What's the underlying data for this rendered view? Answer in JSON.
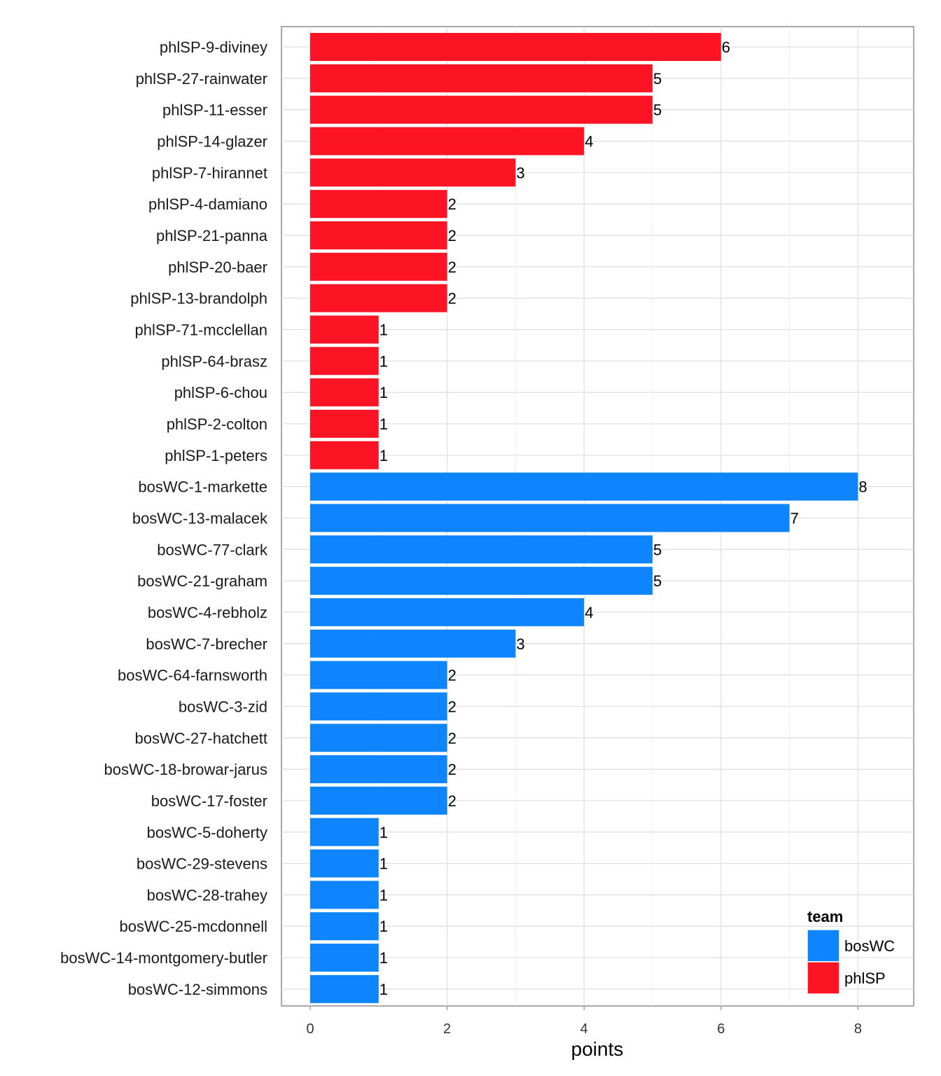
{
  "chart_data": {
    "type": "bar",
    "orientation": "horizontal",
    "xlabel": "points",
    "ylabel": "",
    "xlim": [
      0,
      8.8
    ],
    "x_ticks": [
      0,
      2,
      4,
      6,
      8
    ],
    "grid": true,
    "legend": {
      "title": "team",
      "placement": "bottom-right",
      "items": [
        {
          "name": "bosWC",
          "color": "#0f85fd"
        },
        {
          "name": "phlSP",
          "color": "#fc1324"
        }
      ]
    },
    "bars": [
      {
        "label": "phlSP-9-diviney",
        "value": 6,
        "team": "phlSP"
      },
      {
        "label": "phlSP-27-rainwater",
        "value": 5,
        "team": "phlSP"
      },
      {
        "label": "phlSP-11-esser",
        "value": 5,
        "team": "phlSP"
      },
      {
        "label": "phlSP-14-glazer",
        "value": 4,
        "team": "phlSP"
      },
      {
        "label": "phlSP-7-hirannet",
        "value": 3,
        "team": "phlSP"
      },
      {
        "label": "phlSP-4-damiano",
        "value": 2,
        "team": "phlSP"
      },
      {
        "label": "phlSP-21-panna",
        "value": 2,
        "team": "phlSP"
      },
      {
        "label": "phlSP-20-baer",
        "value": 2,
        "team": "phlSP"
      },
      {
        "label": "phlSP-13-brandolph",
        "value": 2,
        "team": "phlSP"
      },
      {
        "label": "phlSP-71-mcclellan",
        "value": 1,
        "team": "phlSP"
      },
      {
        "label": "phlSP-64-brasz",
        "value": 1,
        "team": "phlSP"
      },
      {
        "label": "phlSP-6-chou",
        "value": 1,
        "team": "phlSP"
      },
      {
        "label": "phlSP-2-colton",
        "value": 1,
        "team": "phlSP"
      },
      {
        "label": "phlSP-1-peters",
        "value": 1,
        "team": "phlSP"
      },
      {
        "label": "bosWC-1-markette",
        "value": 8,
        "team": "bosWC"
      },
      {
        "label": "bosWC-13-malacek",
        "value": 7,
        "team": "bosWC"
      },
      {
        "label": "bosWC-77-clark",
        "value": 5,
        "team": "bosWC"
      },
      {
        "label": "bosWC-21-graham",
        "value": 5,
        "team": "bosWC"
      },
      {
        "label": "bosWC-4-rebholz",
        "value": 4,
        "team": "bosWC"
      },
      {
        "label": "bosWC-7-brecher",
        "value": 3,
        "team": "bosWC"
      },
      {
        "label": "bosWC-64-farnsworth",
        "value": 2,
        "team": "bosWC"
      },
      {
        "label": "bosWC-3-zid",
        "value": 2,
        "team": "bosWC"
      },
      {
        "label": "bosWC-27-hatchett",
        "value": 2,
        "team": "bosWC"
      },
      {
        "label": "bosWC-18-browar-jarus",
        "value": 2,
        "team": "bosWC"
      },
      {
        "label": "bosWC-17-foster",
        "value": 2,
        "team": "bosWC"
      },
      {
        "label": "bosWC-5-doherty",
        "value": 1,
        "team": "bosWC"
      },
      {
        "label": "bosWC-29-stevens",
        "value": 1,
        "team": "bosWC"
      },
      {
        "label": "bosWC-28-trahey",
        "value": 1,
        "team": "bosWC"
      },
      {
        "label": "bosWC-25-mcdonnell",
        "value": 1,
        "team": "bosWC"
      },
      {
        "label": "bosWC-14-montgomery-butler",
        "value": 1,
        "team": "bosWC"
      },
      {
        "label": "bosWC-12-simmons",
        "value": 1,
        "team": "bosWC"
      }
    ]
  }
}
